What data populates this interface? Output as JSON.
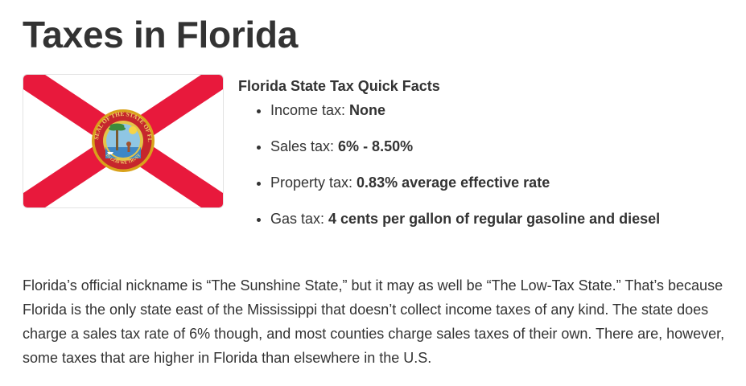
{
  "page": {
    "title": "Taxes in Florida"
  },
  "flag": {
    "icon": "florida-flag-icon",
    "seal_text_top": "GREAT SEAL OF THE STATE OF FLORIDA",
    "seal_text_bottom": "IN GOD WE TRUST",
    "colors": {
      "cross": "#e8193c",
      "field": "#ffffff",
      "seal_ring": "#d9a21b"
    }
  },
  "quick_facts": {
    "heading": "Florida State Tax Quick Facts",
    "items": [
      {
        "label": "Income tax: ",
        "value": "None"
      },
      {
        "label": "Sales tax: ",
        "value": "6% - 8.50%"
      },
      {
        "label": "Property tax: ",
        "value": "0.83% average effective rate"
      },
      {
        "label": "Gas tax: ",
        "value": "4 cents per gallon of regular gasoline and diesel"
      }
    ]
  },
  "intro": {
    "text": "Florida’s official nickname is “The Sunshine State,” but it may as well be “The Low-Tax State.” That’s because Florida is the only state east of the Mississippi that doesn’t collect income taxes of any kind. The state does charge a sales tax rate of 6% though, and most counties charge sales taxes of their own. There are, however, some taxes that are higher in Florida than elsewhere in the U.S."
  }
}
